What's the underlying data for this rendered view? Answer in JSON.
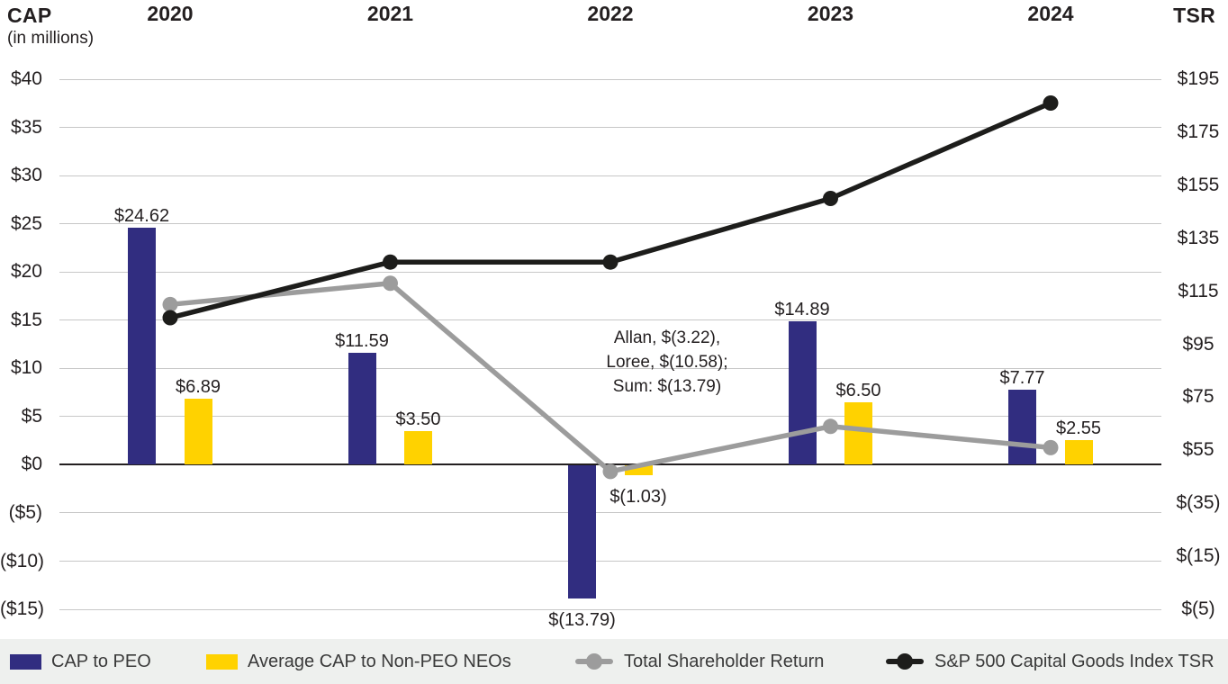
{
  "header": {
    "cap_title": "CAP",
    "cap_subtitle": "(in millions)",
    "tsr_title": "TSR"
  },
  "years": [
    "2020",
    "2021",
    "2022",
    "2023",
    "2024"
  ],
  "left_axis_ticks": [
    "$40",
    "$35",
    "$30",
    "$25",
    "$20",
    "$15",
    "$10",
    "$5",
    "$0",
    "($5)",
    "($10)",
    "($15)"
  ],
  "right_axis_ticks": [
    "$195",
    "$175",
    "$155",
    "$135",
    "$115",
    "$95",
    "$75",
    "$55",
    "$(35)",
    "$(15)",
    "$(5)"
  ],
  "annotation": {
    "lines": [
      "Allan, $(3.22),",
      "Loree, $(10.58);",
      "Sum: $(13.79)"
    ]
  },
  "colors": {
    "navy": "#312d80",
    "yellow": "#ffd200",
    "gray": "#9c9c9c",
    "black": "#1d1d1b",
    "text": "#231f20",
    "gridline": "#c7c7c7",
    "legend_bg": "#eef0ee"
  },
  "legend": {
    "items": [
      {
        "label": "CAP to PEO",
        "swatch": "bar",
        "color": "#312d80"
      },
      {
        "label": "Average CAP to Non-PEO NEOs",
        "swatch": "bar",
        "color": "#ffd200"
      },
      {
        "label": "Total Shareholder Return",
        "swatch": "line",
        "color": "#9c9c9c"
      },
      {
        "label": "S&P 500 Capital Goods Index TSR",
        "swatch": "line",
        "color": "#1d1d1b"
      }
    ]
  },
  "chart_data": {
    "type": "combo: bar + line, dual axis",
    "categories": [
      "2020",
      "2021",
      "2022",
      "2023",
      "2024"
    ],
    "left_axis": {
      "title": "CAP (in millions)",
      "min": -15,
      "max": 40,
      "step": 5,
      "grid": true
    },
    "right_axis": {
      "title": "TSR",
      "tick_labels_top_to_bottom": [
        "$195",
        "$175",
        "$155",
        "$135",
        "$115",
        "$95",
        "$75",
        "$55",
        "$(35)",
        "$(15)",
        "$(5)"
      ]
    },
    "bar_series": [
      {
        "name": "CAP to PEO",
        "color": "#312d80",
        "values": [
          24.62,
          11.59,
          -13.79,
          14.89,
          7.77
        ],
        "labels": [
          "$24.62",
          "$11.59",
          "$(13.79)",
          "$14.89",
          "$7.77"
        ]
      },
      {
        "name": "Average CAP to Non-PEO NEOs",
        "color": "#ffd200",
        "values": [
          6.89,
          3.5,
          -1.03,
          6.5,
          2.55
        ],
        "labels": [
          "$6.89",
          "$3.50",
          "$(1.03)",
          "$6.50",
          "$2.55"
        ]
      }
    ],
    "line_series": [
      {
        "name": "Total Shareholder Return",
        "color": "#9c9c9c",
        "values_approx_right_axis": [
          110,
          118,
          47,
          64,
          56
        ]
      },
      {
        "name": "S&P 500 Capital Goods Index TSR",
        "color": "#1d1d1b",
        "values_approx_right_axis": [
          105,
          126,
          126,
          150,
          186
        ]
      }
    ],
    "annotation_2022": "Allan, $(3.22), Loree, $(10.58); Sum: $(13.79)",
    "legend_position": "bottom"
  }
}
